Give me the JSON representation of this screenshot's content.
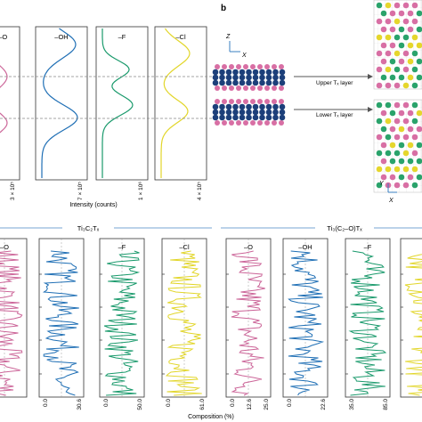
{
  "panel_b_label": "b",
  "top_panels": [
    {
      "label": "=–O",
      "color": "#cc6699",
      "tick": "3 × 10⁵"
    },
    {
      "label": "–OH",
      "color": "#1f6fb5",
      "tick": "7 × 10⁵"
    },
    {
      "label": "–F",
      "color": "#1a9a6c",
      "tick": "1 × 10⁶"
    },
    {
      "label": "–Cl",
      "color": "#e2d62a",
      "tick": "4 × 10⁵"
    }
  ],
  "intensity_label": "Intensity (counts)",
  "axes": {
    "z": "Z",
    "x": "X",
    "y": "Y",
    "x2": "X"
  },
  "layer_labels": {
    "upper": "Upper Tₓ layer",
    "lower": "Lower Tₓ layer"
  },
  "group_labels": {
    "left": "Ti₃C₂Tₓ",
    "right": "Ti₃(C₂–O)Tₓ"
  },
  "bottom_left": [
    {
      "label": "–O",
      "color": "#cc6699",
      "ticks": []
    },
    {
      "label": "",
      "color": "#1f6fb5",
      "ticks": [
        "0.0",
        "30.6"
      ]
    },
    {
      "label": "–F",
      "color": "#1a9a6c",
      "ticks": [
        "0.0",
        "50.0"
      ]
    },
    {
      "label": "–Cl",
      "color": "#e2d62a",
      "ticks": [
        "0.0",
        "61.0"
      ]
    }
  ],
  "bottom_right": [
    {
      "label": "–O",
      "color": "#cc6699",
      "ticks": [
        "0.0",
        "12.6",
        "25.0"
      ]
    },
    {
      "label": "–OH",
      "color": "#1f6fb5",
      "ticks": [
        "0.0",
        "22.6"
      ]
    },
    {
      "label": "–F",
      "color": "#1a9a6c",
      "ticks": [
        "35.0",
        "85.0"
      ]
    },
    {
      "label": "",
      "color": "#e2d62a",
      "ticks": []
    }
  ],
  "composition_label": "Composition (%)"
}
